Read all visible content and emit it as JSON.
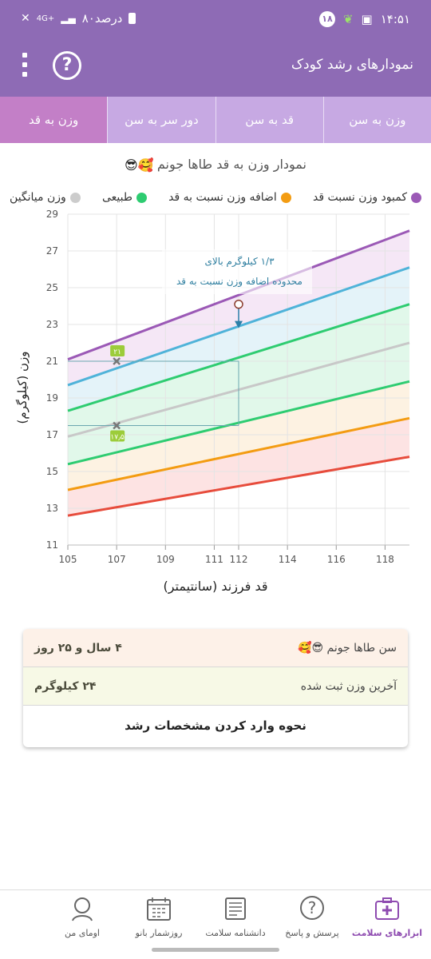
{
  "status": {
    "time": "۱۴:۵۱",
    "notif_count": "۱۸",
    "battery": "۸۰درصد",
    "network": "4G+"
  },
  "appbar": {
    "title": "نمودارهای رشد کودک",
    "help_icon": "help-circle-icon",
    "menu_icon": "more-vertical-icon"
  },
  "tabs": [
    {
      "label": "وزن به سن"
    },
    {
      "label": "قد به سن"
    },
    {
      "label": "دور سر به سن"
    },
    {
      "label": "وزن به قد"
    }
  ],
  "chart_title": "نمودار وزن به قد طاها جونم",
  "chart_title_emoji": "😎🥰",
  "legend": [
    {
      "label": "کمبود وزن نسبت قد",
      "color": "#9b59b6"
    },
    {
      "label": "اضافه وزن نسبت به قد",
      "color": "#f39c12"
    },
    {
      "label": "طبیعی",
      "color": "#2ecc71"
    },
    {
      "label": "وزن میانگین",
      "color": "#cccccc"
    }
  ],
  "chart_data": {
    "type": "line",
    "xlabel": "قد فرزند (سانتیمتر)",
    "ylabel": "وزن (کیلوگرم)",
    "xlim": [
      105,
      119
    ],
    "ylim": [
      11,
      29
    ],
    "xticks": [
      105,
      107,
      109,
      111,
      112,
      114,
      116,
      118
    ],
    "yticks": [
      11,
      13,
      15,
      17,
      19,
      21,
      23,
      25,
      27,
      29
    ],
    "x": [
      105,
      119
    ],
    "series": [
      {
        "color": "#9b59b6",
        "values": [
          21.1,
          28.1
        ]
      },
      {
        "color": "#4fb3d9",
        "values": [
          19.7,
          26.1
        ]
      },
      {
        "color": "#2ecc71",
        "values": [
          18.3,
          24.1
        ]
      },
      {
        "color": "#c8c8c8",
        "values": [
          16.9,
          22.0
        ]
      },
      {
        "color": "#2ecc71",
        "values": [
          15.4,
          19.9
        ]
      },
      {
        "color": "#f39c12",
        "values": [
          14.0,
          17.9
        ]
      },
      {
        "color": "#e74c3c",
        "values": [
          12.6,
          15.8
        ]
      }
    ],
    "band_fills": [
      "#f3e3f5",
      "#dff1f8",
      "#dcf7e6",
      "#dcf7e6",
      "#fdf0dd",
      "#fddede"
    ],
    "points": [
      {
        "x": 107,
        "y": 21,
        "label": "۲۱"
      },
      {
        "x": 107,
        "y": 17.5,
        "label": "۱۷٫۵"
      }
    ],
    "guides": {
      "x": 112,
      "y_values": [
        21,
        17.5
      ]
    },
    "annotation": {
      "line1": "۱/۳ کیلوگرم بالای",
      "line2": "محدوده اضافه وزن نسبت به قد",
      "from_y": 24.1,
      "to_y": 22.8,
      "x": 112
    }
  },
  "summary": {
    "age_label": "سن طاها جونم",
    "age_label_emoji": "😎🥰",
    "age_value": "۴ سال و ۲۵ روز",
    "weight_label": "آخرین وزن ثبت شده",
    "weight_value": "۲۴ کیلوگرم",
    "howto": "نحوه وارد کردن مشخصات رشد"
  },
  "bottom_nav": [
    {
      "label": "ابزارهای سلامت",
      "icon": "health-kit-icon"
    },
    {
      "label": "پرسش و پاسخ",
      "icon": "question-icon"
    },
    {
      "label": "دانشنامه سلامت",
      "icon": "newspaper-icon"
    },
    {
      "label": "روزشمار بانو",
      "icon": "calendar-icon"
    },
    {
      "label": "اومای من",
      "icon": "profile-icon"
    }
  ]
}
